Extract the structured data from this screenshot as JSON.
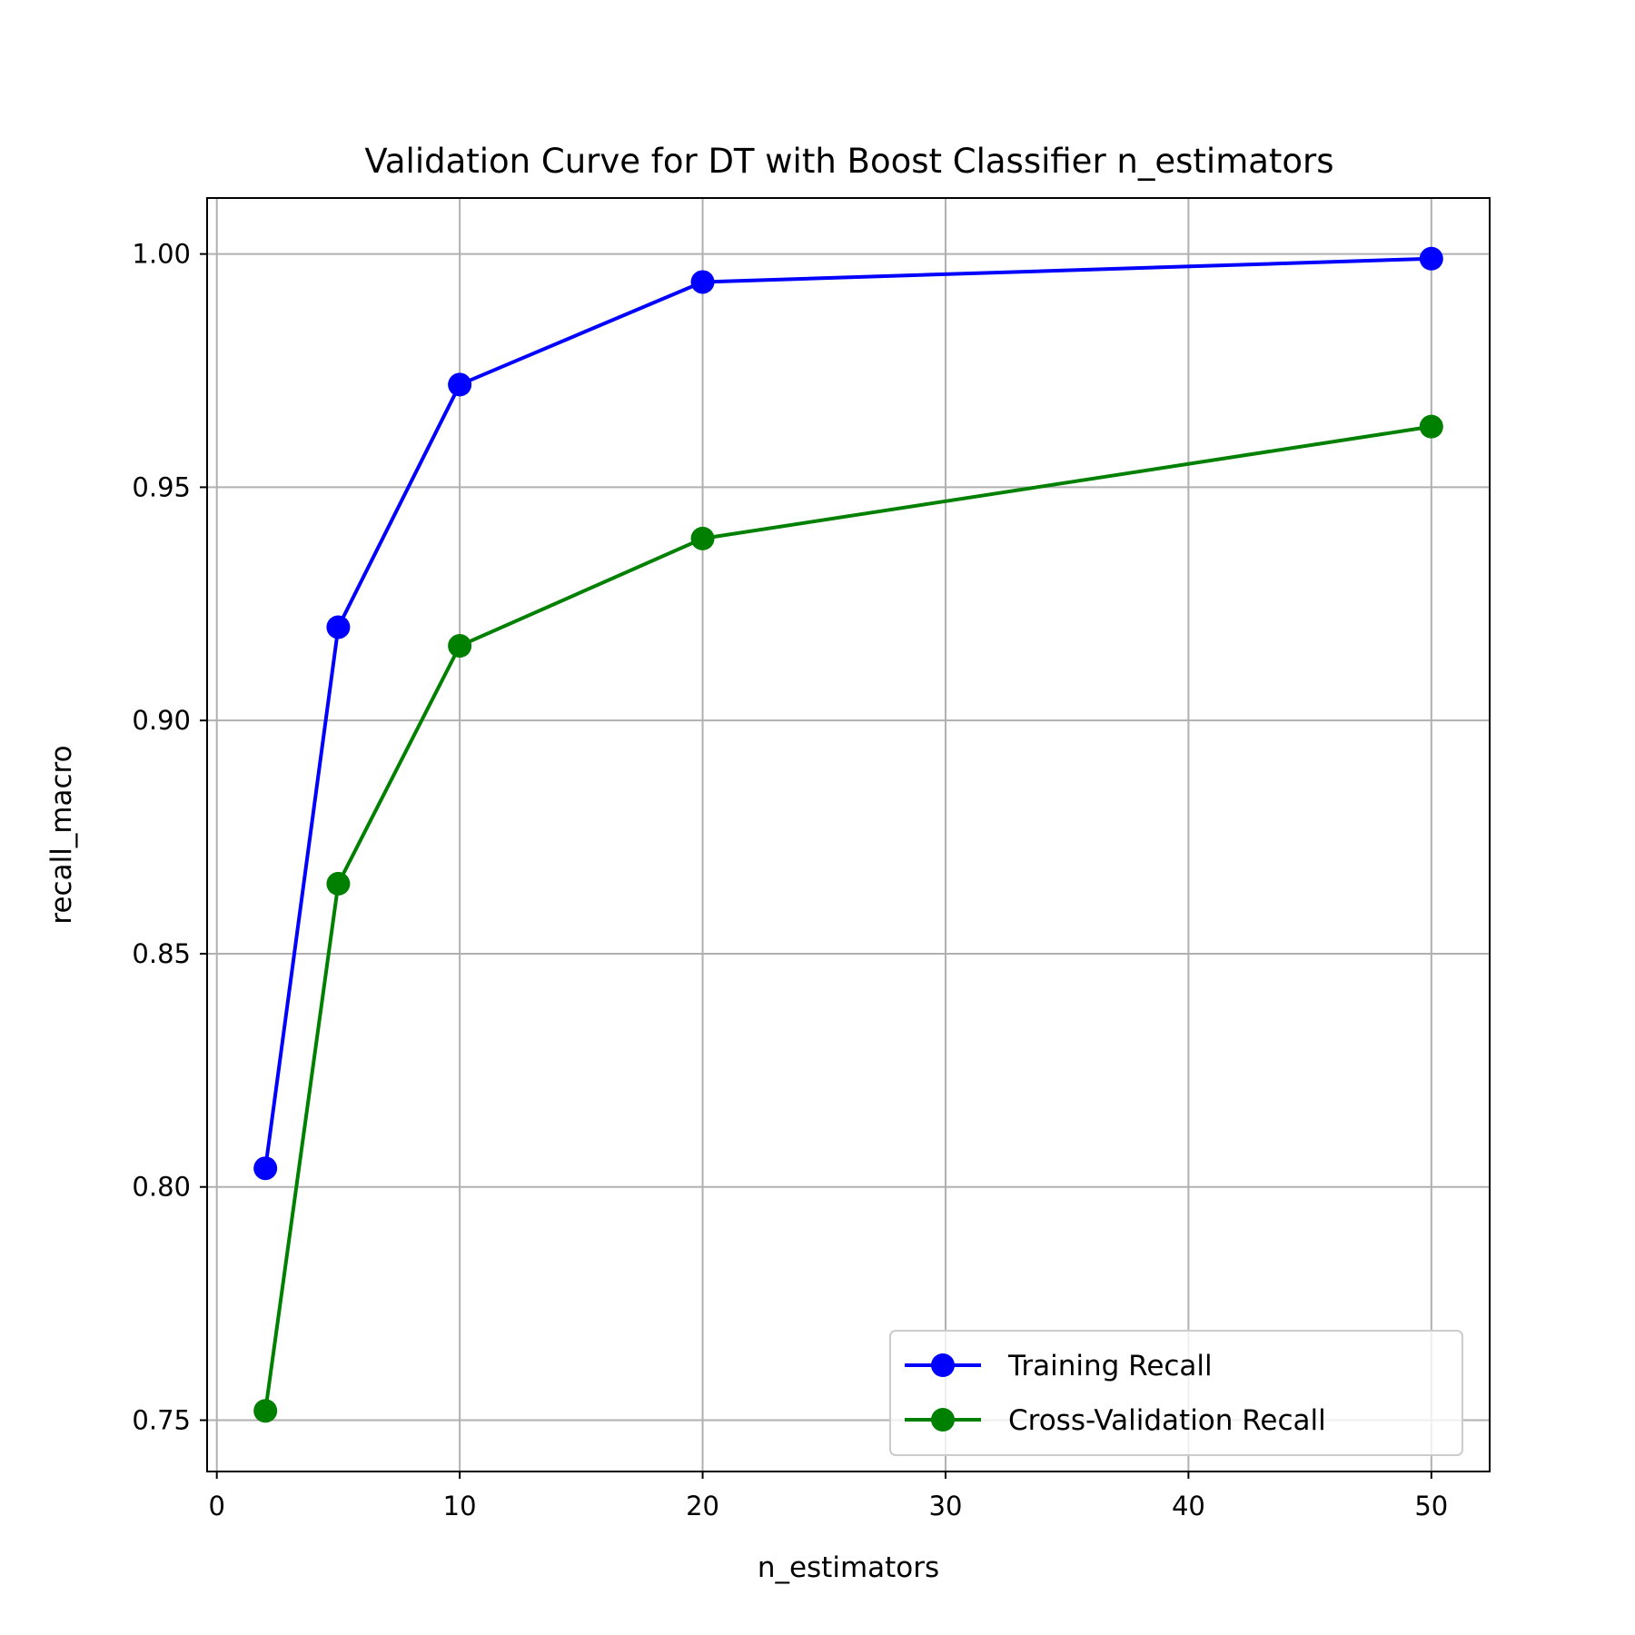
{
  "chart_data": {
    "type": "line",
    "title": "Validation Curve for DT with Boost Classifier n_estimators",
    "xlabel": "n_estimators",
    "ylabel": "recall_macro",
    "xlim": [
      -0.4,
      52.4
    ],
    "ylim": [
      0.739,
      1.012
    ],
    "xticks": [
      0,
      10,
      20,
      30,
      40,
      50
    ],
    "xtick_labels": [
      "0",
      "10",
      "20",
      "30",
      "40",
      "50"
    ],
    "yticks": [
      0.75,
      0.8,
      0.85,
      0.9,
      0.95,
      1.0
    ],
    "ytick_labels": [
      "0.75",
      "0.80",
      "0.85",
      "0.90",
      "0.95",
      "1.00"
    ],
    "grid": true,
    "legend_position": "lower-right",
    "x": [
      2,
      5,
      10,
      20,
      50
    ],
    "series": [
      {
        "name": "Training Recall",
        "color": "#0000ff",
        "marker": "circle",
        "values": [
          0.804,
          0.92,
          0.972,
          0.994,
          0.999
        ]
      },
      {
        "name": "Cross-Validation Recall",
        "color": "#008000",
        "marker": "circle",
        "values": [
          0.752,
          0.865,
          0.916,
          0.939,
          0.963
        ]
      }
    ]
  }
}
